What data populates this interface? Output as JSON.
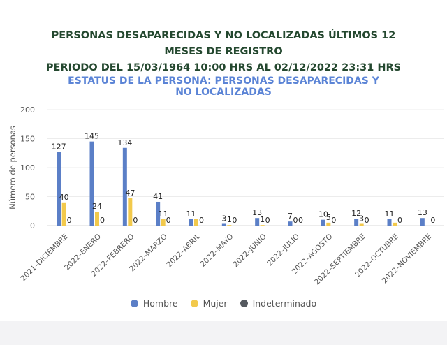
{
  "chart_data": {
    "type": "bar",
    "title": "PERSONAS DESAPARECIDAS Y NO LOCALIZADAS ÚLTIMOS 12 MESES DE REGISTRO",
    "subtitle_period": "PERIODO DEL 15/03/1964 10:00 HRS AL 02/12/2022 23:31 HRS",
    "subtitle_status": "ESTATUS DE LA PERSONA: PERSONAS DESAPARECIDAS Y NO LOCALIZADAS",
    "ylabel": "Número de personas",
    "xlabel": "",
    "ylim": [
      0,
      200
    ],
    "yticks": [
      0,
      50,
      100,
      150,
      200
    ],
    "grid": true,
    "legend_position": "bottom",
    "categories": [
      "2021–DICIEMBRE",
      "2022–ENERO",
      "2022–FEBRERO",
      "2022–MARZO",
      "2022–ABRIL",
      "2022–MAYO",
      "2022–JUNIO",
      "2022–JULIO",
      "2022–AGOSTO",
      "2022–SEPTIEMBRE",
      "2022–OCTUBRE",
      "2022–NOVIEMBRE"
    ],
    "series": [
      {
        "name": "Hombre",
        "color": "#5b7fc7",
        "values": [
          127,
          145,
          134,
          41,
          11,
          3,
          13,
          7,
          10,
          12,
          11,
          13
        ],
        "labels": [
          "127",
          "145",
          "134",
          "41",
          "11",
          "3",
          "13",
          "7",
          "10",
          "12",
          "11",
          "13"
        ]
      },
      {
        "name": "Mujer",
        "color": "#f2c94c",
        "values": [
          40,
          24,
          47,
          11,
          11,
          1,
          1,
          0,
          5,
          3,
          5,
          0
        ],
        "labels": [
          "40",
          "24",
          "47",
          "11",
          "",
          "1",
          "1",
          "0",
          "5",
          "3",
          "",
          ""
        ]
      },
      {
        "name": "Indeterminado",
        "color": "#55595f",
        "values": [
          0,
          0,
          0,
          0,
          0,
          0,
          0,
          0,
          0,
          0,
          0,
          0
        ],
        "labels": [
          "0",
          "0",
          "0",
          "0",
          "0",
          "0",
          "0",
          "0",
          "0",
          "0",
          "0",
          "0"
        ]
      }
    ]
  }
}
